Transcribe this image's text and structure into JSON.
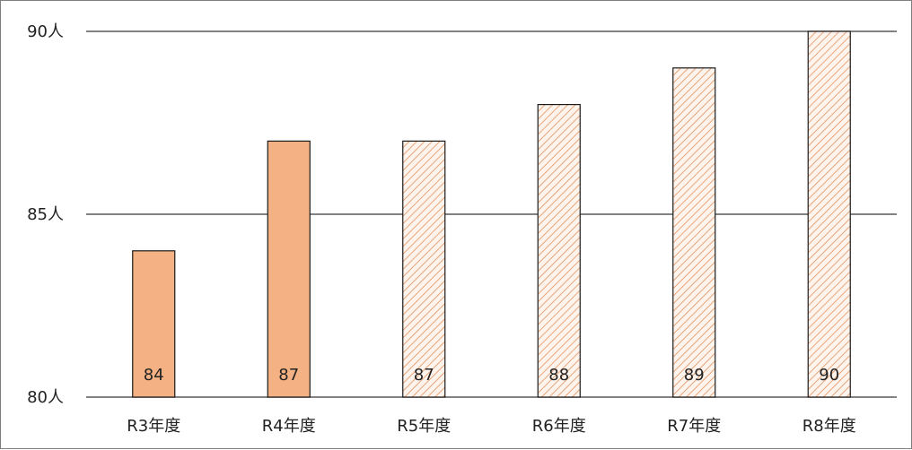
{
  "chart_data": {
    "type": "bar",
    "title": "",
    "xlabel": "",
    "ylabel": "",
    "categories": [
      "R3年度",
      "R4年度",
      "R5年度",
      "R6年度",
      "R7年度",
      "R8年度"
    ],
    "values": [
      84,
      87,
      87,
      88,
      89,
      90
    ],
    "data_labels": [
      "84",
      "87",
      "87",
      "88",
      "89",
      "90"
    ],
    "bar_styles": [
      "solid",
      "solid",
      "hatched",
      "hatched",
      "hatched",
      "hatched"
    ],
    "ylim": [
      80,
      90
    ],
    "y_ticks": [
      80,
      85,
      90
    ],
    "y_tick_labels": [
      "80人",
      "85人",
      "90人"
    ],
    "grid": true,
    "legend": "none",
    "colors": {
      "solid_fill": "#f4b183",
      "hatch_line": "#e8a577",
      "hatch_background": "#fdf4ee",
      "bar_outline": "#1a1a1a",
      "grid": "#595959"
    }
  }
}
